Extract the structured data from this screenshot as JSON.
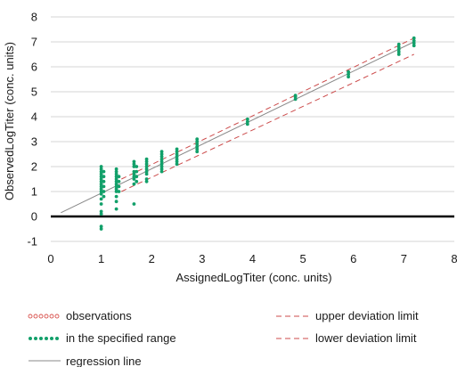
{
  "chart_data": {
    "type": "scatter",
    "title": "",
    "xlabel": "AssignedLogTiter (conc. units)",
    "ylabel": "ObservedLogTiter (conc. units)",
    "xlim": [
      0,
      8
    ],
    "ylim": [
      -1,
      8
    ],
    "x_ticks": [
      0,
      1,
      2,
      3,
      4,
      5,
      6,
      7,
      8
    ],
    "y_ticks": [
      -1,
      0,
      1,
      2,
      3,
      4,
      5,
      6,
      7,
      8
    ],
    "grid": "horizontal",
    "legend_position": "bottom",
    "colors": {
      "observations": "#d9534f",
      "specified_range": "#12a06a",
      "regression": "#888888",
      "deviation": "#cc4b4b",
      "zero_line": "#000000"
    },
    "series": [
      {
        "name": "in the specified range",
        "points": [
          [
            1.0,
            -0.5
          ],
          [
            1.0,
            -0.4
          ],
          [
            1.0,
            0.1
          ],
          [
            1.0,
            0.2
          ],
          [
            1.0,
            0.5
          ],
          [
            1.0,
            0.7
          ],
          [
            1.0,
            0.9
          ],
          [
            1.0,
            1.0
          ],
          [
            1.0,
            1.1
          ],
          [
            1.0,
            1.2
          ],
          [
            1.0,
            1.3
          ],
          [
            1.0,
            1.4
          ],
          [
            1.0,
            1.5
          ],
          [
            1.0,
            1.6
          ],
          [
            1.0,
            1.7
          ],
          [
            1.0,
            1.8
          ],
          [
            1.0,
            1.9
          ],
          [
            1.0,
            2.0
          ],
          [
            1.05,
            0.8
          ],
          [
            1.05,
            1.0
          ],
          [
            1.05,
            1.2
          ],
          [
            1.05,
            1.4
          ],
          [
            1.05,
            1.6
          ],
          [
            1.05,
            1.8
          ],
          [
            1.3,
            0.3
          ],
          [
            1.3,
            0.6
          ],
          [
            1.3,
            0.8
          ],
          [
            1.3,
            1.0
          ],
          [
            1.3,
            1.1
          ],
          [
            1.3,
            1.2
          ],
          [
            1.3,
            1.3
          ],
          [
            1.3,
            1.4
          ],
          [
            1.3,
            1.5
          ],
          [
            1.3,
            1.6
          ],
          [
            1.3,
            1.7
          ],
          [
            1.3,
            1.8
          ],
          [
            1.3,
            1.9
          ],
          [
            1.35,
            1.0
          ],
          [
            1.35,
            1.2
          ],
          [
            1.35,
            1.4
          ],
          [
            1.35,
            1.6
          ],
          [
            1.65,
            0.5
          ],
          [
            1.65,
            1.3
          ],
          [
            1.65,
            1.5
          ],
          [
            1.65,
            1.6
          ],
          [
            1.65,
            1.7
          ],
          [
            1.65,
            1.8
          ],
          [
            1.65,
            2.0
          ],
          [
            1.65,
            2.1
          ],
          [
            1.65,
            2.2
          ],
          [
            1.7,
            1.4
          ],
          [
            1.7,
            1.6
          ],
          [
            1.7,
            1.8
          ],
          [
            1.7,
            2.0
          ],
          [
            1.9,
            1.4
          ],
          [
            1.9,
            1.5
          ],
          [
            1.9,
            1.7
          ],
          [
            1.9,
            1.8
          ],
          [
            1.9,
            1.9
          ],
          [
            1.9,
            2.0
          ],
          [
            1.9,
            2.1
          ],
          [
            1.9,
            2.2
          ],
          [
            1.9,
            2.3
          ],
          [
            2.2,
            1.8
          ],
          [
            2.2,
            1.9
          ],
          [
            2.2,
            2.0
          ],
          [
            2.2,
            2.1
          ],
          [
            2.2,
            2.2
          ],
          [
            2.2,
            2.3
          ],
          [
            2.2,
            2.4
          ],
          [
            2.2,
            2.5
          ],
          [
            2.2,
            2.6
          ],
          [
            2.5,
            2.1
          ],
          [
            2.5,
            2.2
          ],
          [
            2.5,
            2.3
          ],
          [
            2.5,
            2.4
          ],
          [
            2.5,
            2.5
          ],
          [
            2.5,
            2.6
          ],
          [
            2.5,
            2.7
          ],
          [
            2.9,
            2.6
          ],
          [
            2.9,
            2.7
          ],
          [
            2.9,
            2.8
          ],
          [
            2.9,
            2.9
          ],
          [
            2.9,
            3.0
          ],
          [
            2.9,
            3.1
          ],
          [
            3.9,
            3.7
          ],
          [
            3.9,
            3.8
          ],
          [
            3.9,
            3.9
          ],
          [
            4.85,
            4.7
          ],
          [
            4.85,
            4.8
          ],
          [
            4.85,
            4.85
          ],
          [
            5.9,
            5.6
          ],
          [
            5.9,
            5.7
          ],
          [
            5.9,
            5.8
          ],
          [
            6.9,
            6.5
          ],
          [
            6.9,
            6.6
          ],
          [
            6.9,
            6.7
          ],
          [
            6.9,
            6.8
          ],
          [
            6.9,
            6.9
          ],
          [
            7.2,
            6.85
          ],
          [
            7.2,
            6.95
          ],
          [
            7.2,
            7.05
          ],
          [
            7.2,
            7.15
          ]
        ]
      }
    ],
    "regression_line": {
      "x": [
        0.2,
        7.2
      ],
      "y": [
        0.15,
        7.0
      ]
    },
    "upper_deviation_limit": {
      "x": [
        1.4,
        7.2
      ],
      "y": [
        1.5,
        7.15
      ]
    },
    "lower_deviation_limit": {
      "x": [
        1.4,
        7.2
      ],
      "y": [
        1.0,
        6.5
      ]
    },
    "legend": [
      {
        "key": "observations",
        "label": "observations",
        "marker": "open-dots"
      },
      {
        "key": "specified",
        "label": "in the specified range",
        "marker": "filled-dots"
      },
      {
        "key": "regression",
        "label": "regression line",
        "marker": "solid-line"
      },
      {
        "key": "upper",
        "label": "upper deviation limit",
        "marker": "dashed-line"
      },
      {
        "key": "lower",
        "label": "lower deviation limit",
        "marker": "dashed-line"
      }
    ]
  }
}
